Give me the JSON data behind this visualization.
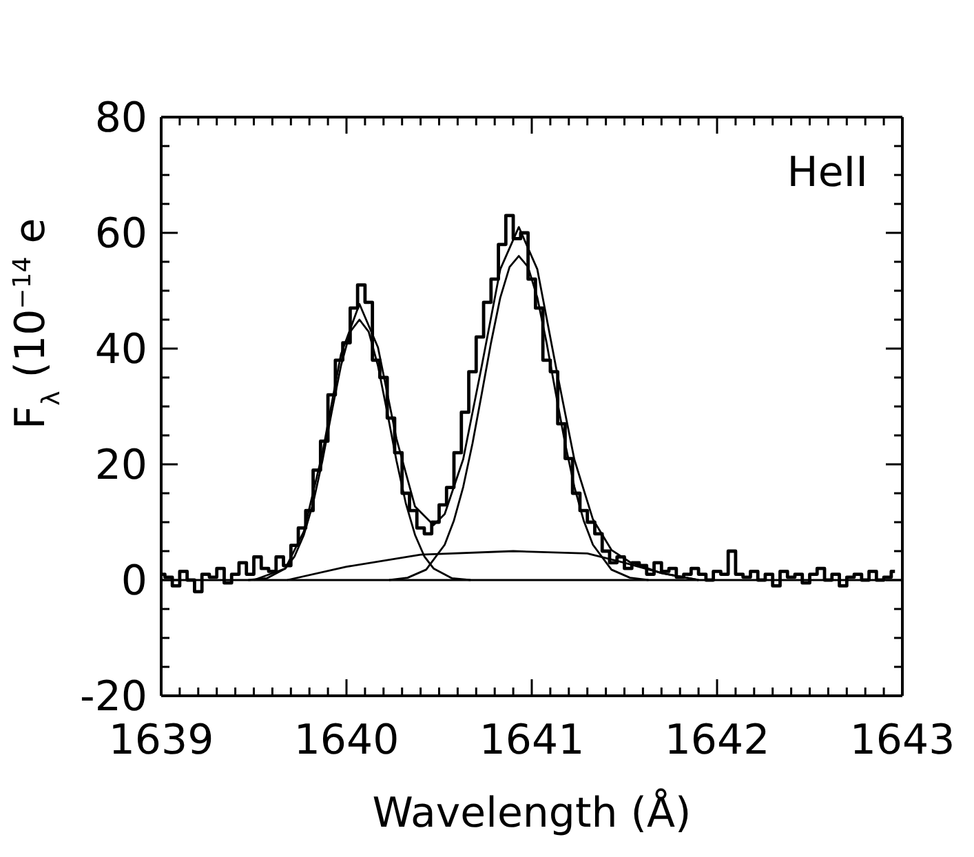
{
  "chart_data": {
    "type": "line",
    "xlabel": "Wavelength (Å)",
    "ylabel": "F$_{λ}$ (10$^{−14}$ e",
    "annotations": [
      "HeII"
    ],
    "xlim": [
      1639,
      1643
    ],
    "ylim": [
      -20,
      80
    ],
    "xticks": [
      1639,
      {
        "value": 1639.1,
        "label": null
      },
      {
        "value": 1639.2,
        "label": null
      },
      {
        "value": 1639.3,
        "label": null
      },
      {
        "value": 1639.4,
        "label": null
      },
      {
        "value": 1639.5,
        "label": null
      },
      {
        "value": 1639.6,
        "label": null
      },
      {
        "value": 1639.7,
        "label": null
      },
      {
        "value": 1639.8,
        "label": null
      },
      {
        "value": 1639.9,
        "label": null
      },
      1640,
      {
        "value": 1640.1,
        "label": null
      },
      {
        "value": 1640.2,
        "label": null
      },
      {
        "value": 1640.3,
        "label": null
      },
      {
        "value": 1640.4,
        "label": null
      },
      {
        "value": 1640.5,
        "label": null
      },
      {
        "value": 1640.6,
        "label": null
      },
      {
        "value": 1640.7,
        "label": null
      },
      {
        "value": 1640.8,
        "label": null
      },
      {
        "value": 1640.9,
        "label": null
      },
      1641,
      {
        "value": 1641.1,
        "label": null
      },
      {
        "value": 1641.2,
        "label": null
      },
      {
        "value": 1641.3,
        "label": null
      },
      {
        "value": 1641.4,
        "label": null
      },
      {
        "value": 1641.5,
        "label": null
      },
      {
        "value": 1641.6,
        "label": null
      },
      {
        "value": 1641.7,
        "label": null
      },
      {
        "value": 1641.8,
        "label": null
      },
      {
        "value": 1641.9,
        "label": null
      },
      1642,
      {
        "value": 1642.1,
        "label": null
      },
      {
        "value": 1642.2,
        "label": null
      },
      {
        "value": 1642.3,
        "label": null
      },
      {
        "value": 1642.4,
        "label": null
      },
      {
        "value": 1642.5,
        "label": null
      },
      {
        "value": 1642.6,
        "label": null
      },
      {
        "value": 1642.7,
        "label": null
      },
      {
        "value": 1642.8,
        "label": null
      },
      {
        "value": 1642.9,
        "label": null
      },
      1643
    ],
    "yticks": [
      -20,
      {
        "value": -15,
        "label": null
      },
      {
        "value": -10,
        "label": null
      },
      {
        "value": -5,
        "label": null
      },
      0,
      {
        "value": 5,
        "label": null
      },
      {
        "value": 10,
        "label": null
      },
      {
        "value": 15,
        "label": null
      },
      20,
      {
        "value": 25,
        "label": null
      },
      {
        "value": 30,
        "label": null
      },
      {
        "value": 35,
        "label": null
      },
      40,
      {
        "value": 45,
        "label": null
      },
      {
        "value": 50,
        "label": null
      },
      {
        "value": 55,
        "label": null
      },
      60,
      {
        "value": 65,
        "label": null
      },
      {
        "value": 70,
        "label": null
      },
      {
        "value": 75,
        "label": null
      },
      80
    ],
    "marker": "none",
    "line_style": "solid",
    "ref_lines": [
      {
        "axis": "y",
        "value": 0,
        "color": "#000000"
      }
    ],
    "series": [
      {
        "type": "step",
        "color": "#000000",
        "x": [
          1639.0,
          1639.04,
          1639.08,
          1639.12,
          1639.16,
          1639.2,
          1639.24,
          1639.28,
          1639.32,
          1639.36,
          1639.4,
          1639.44,
          1639.48,
          1639.52,
          1639.56,
          1639.6,
          1639.64,
          1639.68,
          1639.72,
          1639.76,
          1639.8,
          1639.84,
          1639.88,
          1639.92,
          1639.96,
          1640.0,
          1640.04,
          1640.08,
          1640.12,
          1640.16,
          1640.2,
          1640.24,
          1640.28,
          1640.32,
          1640.36,
          1640.4,
          1640.44,
          1640.48,
          1640.52,
          1640.56,
          1640.6,
          1640.64,
          1640.68,
          1640.72,
          1640.76,
          1640.8,
          1640.84,
          1640.88,
          1640.92,
          1640.96,
          1641.0,
          1641.04,
          1641.08,
          1641.12,
          1641.16,
          1641.2,
          1641.24,
          1641.28,
          1641.32,
          1641.36,
          1641.4,
          1641.44,
          1641.48,
          1641.52,
          1641.56,
          1641.6,
          1641.64,
          1641.68,
          1641.72,
          1641.76,
          1641.8,
          1641.84,
          1641.88,
          1641.92,
          1641.96,
          1642.0,
          1642.04,
          1642.08,
          1642.12,
          1642.16,
          1642.2,
          1642.24,
          1642.28,
          1642.32,
          1642.36,
          1642.4,
          1642.44,
          1642.48,
          1642.52,
          1642.56,
          1642.6,
          1642.64,
          1642.68,
          1642.72,
          1642.76,
          1642.8,
          1642.84,
          1642.88,
          1642.92,
          1642.96
        ],
        "values": [
          1,
          0.5,
          -1,
          1.5,
          0,
          -2,
          1,
          0.5,
          2,
          -0.5,
          1,
          3,
          1,
          4,
          2,
          1.5,
          4,
          2.5,
          6,
          9,
          12,
          19,
          24,
          32,
          38,
          41,
          47,
          51,
          48,
          38,
          35,
          28,
          22,
          15,
          12,
          9,
          8,
          10,
          13,
          16,
          22,
          29,
          36,
          42,
          48,
          52,
          58,
          63,
          59,
          60,
          52,
          47,
          38,
          36,
          27,
          21,
          15,
          12,
          10,
          8,
          5,
          3,
          4,
          2,
          3,
          2.5,
          1,
          3,
          1.5,
          2,
          0.5,
          1,
          2,
          1,
          0,
          1.5,
          1,
          5,
          1,
          0.5,
          1.5,
          0,
          1,
          -1,
          1.5,
          0.5,
          1,
          -0.5,
          1,
          2,
          0,
          1,
          -1,
          0.5,
          1,
          0,
          1.5,
          0,
          0.5,
          1.5
        ]
      },
      {
        "color": "#000000",
        "x": [
          1639.5,
          1639.67,
          1639.77,
          1639.87,
          1639.97,
          1640.07,
          1640.17,
          1640.27,
          1640.37,
          1640.47,
          1640.53,
          1640.63,
          1640.73,
          1640.83,
          1640.93,
          1641.03,
          1641.13,
          1641.23,
          1641.33,
          1641.43,
          1641.53,
          1641.7,
          1641.9
        ],
        "values": [
          0,
          2.0,
          8.4,
          21.9,
          39.0,
          47.7,
          40.2,
          24.4,
          12.7,
          9.5,
          11.4,
          20.9,
          37.0,
          53.7,
          61.0,
          53.7,
          36.9,
          20.8,
          10.5,
          5.2,
          3.1,
          1.2,
          0
        ]
      },
      {
        "color": "#000000",
        "x": [
          1639.47,
          1639.57,
          1639.67,
          1639.72,
          1639.77,
          1639.82,
          1639.87,
          1639.92,
          1639.97,
          1640.02,
          1640.07,
          1640.12,
          1640.17,
          1640.22,
          1640.27,
          1640.32,
          1640.37,
          1640.42,
          1640.47,
          1640.57,
          1640.67
        ],
        "values": [
          0,
          0.3,
          2.0,
          4.1,
          7.8,
          13.3,
          20.6,
          29.0,
          37.0,
          42.9,
          45,
          42.9,
          37.0,
          29.0,
          20.6,
          13.3,
          7.8,
          4.1,
          2.0,
          0.3,
          0
        ]
      },
      {
        "color": "#000000",
        "x": [
          1640.23,
          1640.33,
          1640.43,
          1640.53,
          1640.58,
          1640.63,
          1640.68,
          1640.73,
          1640.78,
          1640.83,
          1640.88,
          1640.93,
          1640.98,
          1641.03,
          1641.08,
          1641.13,
          1641.18,
          1641.23,
          1641.28,
          1641.33,
          1641.43,
          1641.53,
          1641.63
        ],
        "values": [
          0,
          0.4,
          1.8,
          6.1,
          10.3,
          16.1,
          23.6,
          32.2,
          41.0,
          48.8,
          54.1,
          56,
          54.1,
          48.8,
          41.0,
          32.2,
          23.6,
          16.1,
          10.3,
          6.1,
          1.8,
          0.4,
          0
        ]
      },
      {
        "color": "#000000",
        "x": [
          1639.68,
          1640.0,
          1640.4,
          1640.9,
          1641.3,
          1641.5,
          1641.7,
          1641.9
        ],
        "values": [
          0,
          2.3,
          4.4,
          5.0,
          4.6,
          3.0,
          1.2,
          0
        ]
      }
    ]
  }
}
